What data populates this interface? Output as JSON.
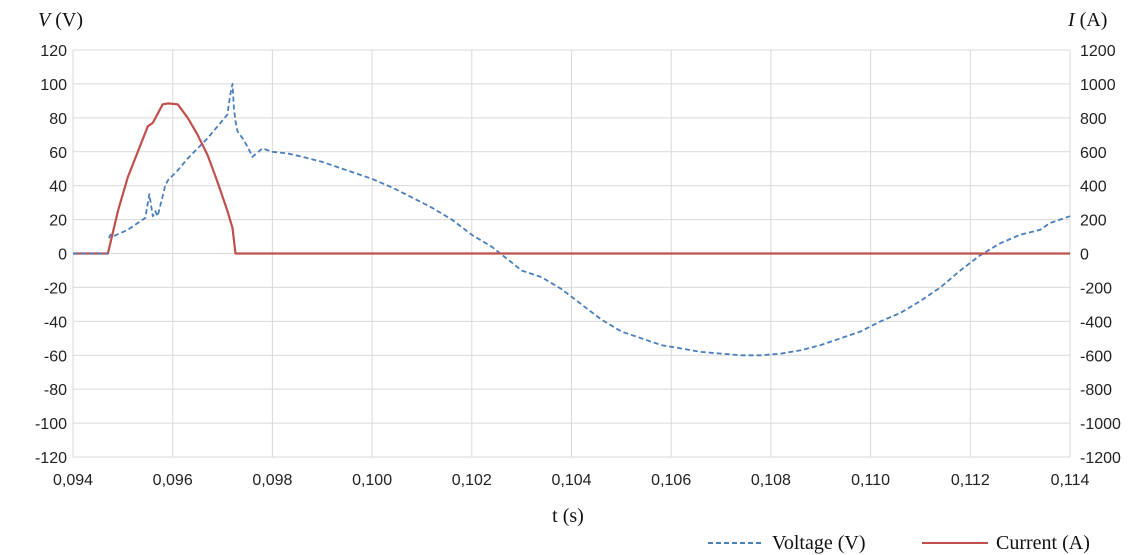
{
  "chart_data": {
    "type": "line",
    "xlabel": "t (s)",
    "ylabel_left_var": "V",
    "ylabel_left_unit": " (V)",
    "ylabel_right_var": "I",
    "ylabel_right_unit": " (A)",
    "xlim": [
      0.094,
      0.114
    ],
    "ylim_left": [
      -120,
      120
    ],
    "ylim_right": [
      -1200,
      1200
    ],
    "x_ticks": [
      "0,094",
      "0,096",
      "0,098",
      "0,100",
      "0,102",
      "0,104",
      "0,106",
      "0,108",
      "0,110",
      "0,112",
      "0,114"
    ],
    "y_left_ticks": [
      "120",
      "100",
      "80",
      "60",
      "40",
      "20",
      "0",
      "-20",
      "-40",
      "-60",
      "-80",
      "-100",
      "-120"
    ],
    "y_right_ticks": [
      "1200",
      "1000",
      "800",
      "600",
      "400",
      "200",
      "0",
      "-200",
      "-400",
      "-600",
      "-800",
      "-1000",
      "-1200"
    ],
    "grid": "vertical and horizontal",
    "legend_position": "bottom-right",
    "colors": {
      "voltage": "#4a7ebb",
      "current": "#c0504d",
      "grid": "#d9d9d9"
    },
    "series": [
      {
        "name": "Voltage (V)",
        "axis": "left",
        "style": "dashed",
        "x": [
          0.094,
          0.0947,
          0.09472,
          0.09475,
          0.0948,
          0.0951,
          0.0953,
          0.09545,
          0.09553,
          0.0956,
          0.09565,
          0.0957,
          0.0958,
          0.09585,
          0.0959,
          0.096,
          0.0961,
          0.0963,
          0.0965,
          0.0967,
          0.0969,
          0.0971,
          0.09715,
          0.0972,
          0.09723,
          0.09726,
          0.0973,
          0.0974,
          0.0975,
          0.0976,
          0.0978,
          0.098,
          0.0983,
          0.0986,
          0.099,
          0.0993,
          0.0996,
          0.1,
          0.1004,
          0.1008,
          0.1012,
          0.1016,
          0.102,
          0.1024,
          0.1027,
          0.103,
          0.1034,
          0.1038,
          0.1042,
          0.1046,
          0.105,
          0.1054,
          0.1058,
          0.1062,
          0.1066,
          0.107,
          0.1074,
          0.1078,
          0.1082,
          0.1086,
          0.109,
          0.1094,
          0.1098,
          0.1102,
          0.1106,
          0.111,
          0.1114,
          0.1118,
          0.1122,
          0.1126,
          0.113,
          0.1134,
          0.1136,
          0.1138,
          0.114
        ],
        "values": [
          null,
          null,
          9,
          11,
          10,
          14,
          18,
          21,
          35,
          22,
          25,
          22,
          34,
          40,
          43,
          46,
          49,
          56,
          62,
          68,
          75,
          82,
          93,
          100,
          85,
          78,
          72,
          68,
          63,
          57,
          62,
          60,
          59,
          57,
          54,
          51,
          48,
          44,
          39,
          33,
          27,
          20,
          11,
          4,
          -3,
          -10,
          -14,
          -21,
          -30,
          -39,
          -46,
          -50,
          -54,
          -56,
          -58,
          -59,
          -60,
          -60,
          -59,
          -57,
          -54,
          -50,
          -46,
          -40,
          -35,
          -28,
          -20,
          -10,
          -1,
          6,
          11,
          14,
          18,
          20,
          22
        ]
      },
      {
        "name": "Current (A)",
        "axis": "right",
        "style": "solid",
        "x": [
          0.094,
          0.0947,
          0.0949,
          0.0951,
          0.0953,
          0.0955,
          0.0956,
          0.0958,
          0.0959,
          0.0961,
          0.0963,
          0.0965,
          0.0967,
          0.0969,
          0.0971,
          0.0972,
          0.09726,
          0.0973,
          0.099,
          0.102,
          0.106,
          0.11,
          0.114
        ],
        "values": [
          0,
          0,
          250,
          450,
          600,
          750,
          770,
          880,
          885,
          880,
          800,
          700,
          580,
          420,
          250,
          150,
          0,
          0,
          0,
          0,
          0,
          0,
          0
        ]
      }
    ]
  }
}
